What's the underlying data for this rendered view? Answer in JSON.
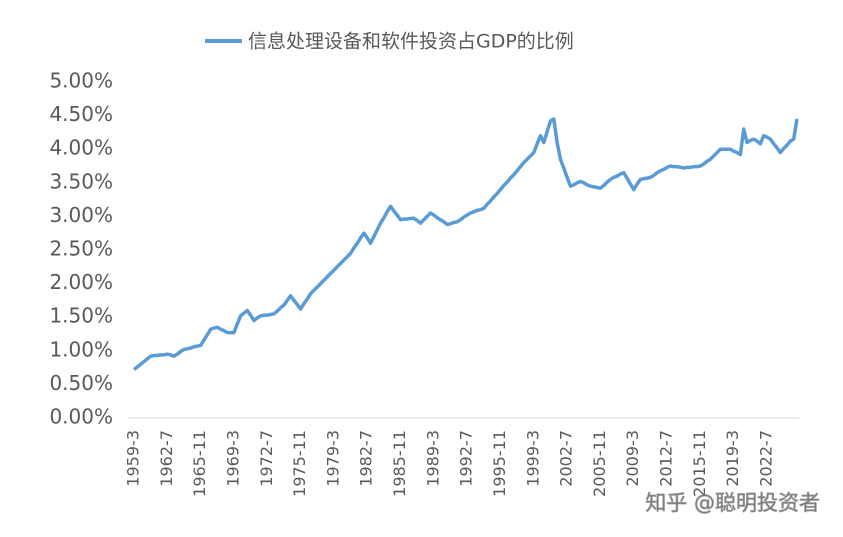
{
  "chart_data": {
    "type": "line",
    "categories": [
      "1959-3",
      null,
      null,
      null,
      null,
      null,
      null,
      null,
      null,
      null,
      "1962-7",
      null,
      null,
      null,
      null,
      null,
      null,
      null,
      null,
      null,
      "1965-11",
      null,
      null,
      null,
      null,
      null,
      null,
      null,
      null,
      null,
      "1969-3",
      null,
      null,
      null,
      null,
      null,
      null,
      null,
      null,
      null,
      "1972-7",
      null,
      null,
      null,
      null,
      null,
      null,
      null,
      null,
      null,
      "1975-11",
      null,
      null,
      null,
      null,
      null,
      null,
      null,
      null,
      null,
      "1979-3",
      null,
      null,
      null,
      null,
      null,
      null,
      null,
      null,
      null,
      "1982-7",
      null,
      null,
      null,
      null,
      null,
      null,
      null,
      null,
      null,
      "1985-11",
      null,
      null,
      null,
      null,
      null,
      null,
      null,
      null,
      null,
      "1989-3",
      null,
      null,
      null,
      null,
      null,
      null,
      null,
      null,
      null,
      "1992-7",
      null,
      null,
      null,
      null,
      null,
      null,
      null,
      null,
      null,
      "1995-11",
      null,
      null,
      null,
      null,
      null,
      null,
      null,
      null,
      null,
      "1999-3",
      null,
      null,
      null,
      null,
      null,
      null,
      null,
      null,
      null,
      "2002-7",
      null,
      null,
      null,
      null,
      null,
      null,
      null,
      null,
      null,
      "2005-11",
      null,
      null,
      null,
      null,
      null,
      null,
      null,
      null,
      null,
      "2009-3",
      null,
      null,
      null,
      null,
      null,
      null,
      null,
      null,
      null,
      "2012-7",
      null,
      null,
      null,
      null,
      null,
      null,
      null,
      null,
      null,
      "2015-11",
      null,
      null,
      null,
      null,
      null,
      null,
      null,
      null,
      null,
      "2019-3",
      null,
      null,
      null,
      null,
      null,
      null,
      null,
      null,
      null,
      "2022-7",
      null,
      null,
      null,
      null,
      null,
      null,
      null,
      null,
      null
    ],
    "series": [
      {
        "name": "信息处理设备和软件投资占GDP的比例",
        "color": "#5b9bd5",
        "values": [
          0.72,
          0.76,
          0.8,
          0.84,
          0.88,
          0.92,
          0.93,
          0.93,
          0.94,
          0.94,
          0.95,
          0.94,
          0.92,
          0.95,
          0.99,
          1.02,
          1.03,
          1.04,
          1.06,
          1.07,
          1.08,
          1.16,
          1.24,
          1.32,
          1.34,
          1.35,
          1.32,
          1.3,
          1.27,
          1.27,
          1.27,
          1.4,
          1.52,
          1.56,
          1.6,
          1.53,
          1.45,
          1.49,
          1.52,
          1.53,
          1.53,
          1.54,
          1.55,
          1.59,
          1.64,
          1.68,
          1.75,
          1.82,
          1.75,
          1.69,
          1.62,
          1.7,
          1.77,
          1.85,
          1.9,
          1.95,
          2.0,
          2.05,
          2.1,
          2.15,
          2.2,
          2.25,
          2.3,
          2.35,
          2.4,
          2.45,
          2.53,
          2.6,
          2.68,
          2.75,
          2.68,
          2.6,
          2.7,
          2.8,
          2.9,
          2.98,
          3.07,
          3.15,
          3.08,
          3.02,
          2.95,
          2.96,
          2.96,
          2.97,
          2.97,
          2.94,
          2.9,
          2.95,
          3.0,
          3.05,
          3.02,
          2.98,
          2.95,
          2.92,
          2.88,
          2.89,
          2.91,
          2.92,
          2.95,
          2.99,
          3.02,
          3.05,
          3.07,
          3.09,
          3.1,
          3.12,
          3.18,
          3.23,
          3.29,
          3.34,
          3.4,
          3.46,
          3.51,
          3.57,
          3.62,
          3.68,
          3.74,
          3.8,
          3.85,
          3.9,
          3.95,
          4.08,
          4.2,
          4.1,
          4.26,
          4.42,
          4.45,
          4.1,
          3.85,
          3.72,
          3.58,
          3.45,
          3.47,
          3.5,
          3.52,
          3.5,
          3.47,
          3.45,
          3.44,
          3.43,
          3.42,
          3.46,
          3.51,
          3.55,
          3.58,
          3.6,
          3.63,
          3.65,
          3.57,
          3.48,
          3.4,
          3.48,
          3.55,
          3.56,
          3.57,
          3.58,
          3.61,
          3.65,
          3.68,
          3.7,
          3.73,
          3.75,
          3.74,
          3.74,
          3.73,
          3.72,
          3.73,
          3.73,
          3.74,
          3.74,
          3.75,
          3.78,
          3.82,
          3.85,
          3.9,
          3.95,
          4.0,
          4.0,
          4.0,
          4.0,
          3.97,
          3.95,
          3.92,
          4.3,
          4.1,
          4.13,
          4.15,
          4.12,
          4.08,
          4.2,
          4.18,
          4.15,
          4.08,
          4.02,
          3.95,
          4.01,
          4.06,
          4.12,
          4.15,
          4.45
        ]
      }
    ],
    "ylim": [
      0,
      5
    ],
    "yticks": [
      {
        "value": 0,
        "label": "0.00%"
      },
      {
        "value": 0.5,
        "label": "0.50%"
      },
      {
        "value": 1,
        "label": "1.00%"
      },
      {
        "value": 1.5,
        "label": "1.50%"
      },
      {
        "value": 2,
        "label": "2.00%"
      },
      {
        "value": 2.5,
        "label": "2.50%"
      },
      {
        "value": 3,
        "label": "3.00%"
      },
      {
        "value": 3.5,
        "label": "3.50%"
      },
      {
        "value": 4,
        "label": "4.00%"
      },
      {
        "value": 4.5,
        "label": "4.50%"
      },
      {
        "value": 5,
        "label": "5.00%"
      }
    ],
    "grid": false,
    "legend": "top",
    "watermark": "知乎 @聪明投资者"
  }
}
